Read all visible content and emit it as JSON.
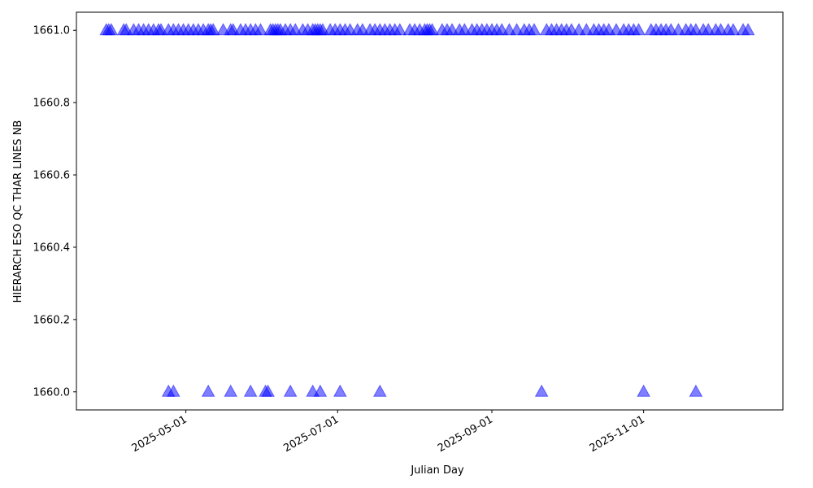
{
  "chart_data": {
    "type": "scatter",
    "title": "",
    "xlabel": "Julian Day",
    "ylabel": "HIERARCH ESO QC THAR LINES NB",
    "x_axis_kind": "date",
    "xlim": [
      "2025-03-18",
      "2025-12-27"
    ],
    "ylim": [
      1659.95,
      1661.05
    ],
    "x_ticks": [
      "2025-05-01",
      "2025-07-01",
      "2025-09-01",
      "2025-11-01"
    ],
    "y_ticks": [
      1660.0,
      1660.2,
      1660.4,
      1660.6,
      1660.8,
      1661.0
    ],
    "y_tick_labels": [
      "1660.0",
      "1660.2",
      "1660.4",
      "1660.6",
      "1660.8",
      "1661.0"
    ],
    "grid": false,
    "legend": "none",
    "marker": "triangle-up",
    "marker_color": "#0000ff",
    "marker_alpha": 0.5,
    "series": [
      {
        "points": [
          {
            "x": "2025-03-30",
            "y": 1661.0
          },
          {
            "x": "2025-03-31",
            "y": 1661.0
          },
          {
            "x": "2025-04-01",
            "y": 1661.0
          },
          {
            "x": "2025-04-06",
            "y": 1661.0
          },
          {
            "x": "2025-04-07",
            "y": 1661.0
          },
          {
            "x": "2025-04-10",
            "y": 1661.0
          },
          {
            "x": "2025-04-12",
            "y": 1661.0
          },
          {
            "x": "2025-04-14",
            "y": 1661.0
          },
          {
            "x": "2025-04-16",
            "y": 1661.0
          },
          {
            "x": "2025-04-18",
            "y": 1661.0
          },
          {
            "x": "2025-04-20",
            "y": 1661.0
          },
          {
            "x": "2025-04-21",
            "y": 1661.0
          },
          {
            "x": "2025-04-24",
            "y": 1661.0
          },
          {
            "x": "2025-04-26",
            "y": 1661.0
          },
          {
            "x": "2025-04-28",
            "y": 1661.0
          },
          {
            "x": "2025-04-30",
            "y": 1661.0
          },
          {
            "x": "2025-05-02",
            "y": 1661.0
          },
          {
            "x": "2025-05-04",
            "y": 1661.0
          },
          {
            "x": "2025-05-06",
            "y": 1661.0
          },
          {
            "x": "2025-05-08",
            "y": 1661.0
          },
          {
            "x": "2025-05-10",
            "y": 1661.0
          },
          {
            "x": "2025-05-11",
            "y": 1661.0
          },
          {
            "x": "2025-05-12",
            "y": 1661.0
          },
          {
            "x": "2025-05-16",
            "y": 1661.0
          },
          {
            "x": "2025-05-19",
            "y": 1661.0
          },
          {
            "x": "2025-05-20",
            "y": 1661.0
          },
          {
            "x": "2025-05-23",
            "y": 1661.0
          },
          {
            "x": "2025-05-25",
            "y": 1661.0
          },
          {
            "x": "2025-05-27",
            "y": 1661.0
          },
          {
            "x": "2025-05-29",
            "y": 1661.0
          },
          {
            "x": "2025-05-31",
            "y": 1661.0
          },
          {
            "x": "2025-06-04",
            "y": 1661.0
          },
          {
            "x": "2025-06-05",
            "y": 1661.0
          },
          {
            "x": "2025-06-06",
            "y": 1661.0
          },
          {
            "x": "2025-06-07",
            "y": 1661.0
          },
          {
            "x": "2025-06-08",
            "y": 1661.0
          },
          {
            "x": "2025-06-10",
            "y": 1661.0
          },
          {
            "x": "2025-06-12",
            "y": 1661.0
          },
          {
            "x": "2025-06-14",
            "y": 1661.0
          },
          {
            "x": "2025-06-17",
            "y": 1661.0
          },
          {
            "x": "2025-06-19",
            "y": 1661.0
          },
          {
            "x": "2025-06-21",
            "y": 1661.0
          },
          {
            "x": "2025-06-22",
            "y": 1661.0
          },
          {
            "x": "2025-06-23",
            "y": 1661.0
          },
          {
            "x": "2025-06-24",
            "y": 1661.0
          },
          {
            "x": "2025-06-25",
            "y": 1661.0
          },
          {
            "x": "2025-06-28",
            "y": 1661.0
          },
          {
            "x": "2025-06-30",
            "y": 1661.0
          },
          {
            "x": "2025-07-02",
            "y": 1661.0
          },
          {
            "x": "2025-07-04",
            "y": 1661.0
          },
          {
            "x": "2025-07-06",
            "y": 1661.0
          },
          {
            "x": "2025-07-09",
            "y": 1661.0
          },
          {
            "x": "2025-07-11",
            "y": 1661.0
          },
          {
            "x": "2025-07-14",
            "y": 1661.0
          },
          {
            "x": "2025-07-16",
            "y": 1661.0
          },
          {
            "x": "2025-07-18",
            "y": 1661.0
          },
          {
            "x": "2025-07-20",
            "y": 1661.0
          },
          {
            "x": "2025-07-22",
            "y": 1661.0
          },
          {
            "x": "2025-07-24",
            "y": 1661.0
          },
          {
            "x": "2025-07-26",
            "y": 1661.0
          },
          {
            "x": "2025-07-30",
            "y": 1661.0
          },
          {
            "x": "2025-08-01",
            "y": 1661.0
          },
          {
            "x": "2025-08-03",
            "y": 1661.0
          },
          {
            "x": "2025-08-05",
            "y": 1661.0
          },
          {
            "x": "2025-08-06",
            "y": 1661.0
          },
          {
            "x": "2025-08-07",
            "y": 1661.0
          },
          {
            "x": "2025-08-08",
            "y": 1661.0
          },
          {
            "x": "2025-08-12",
            "y": 1661.0
          },
          {
            "x": "2025-08-14",
            "y": 1661.0
          },
          {
            "x": "2025-08-16",
            "y": 1661.0
          },
          {
            "x": "2025-08-19",
            "y": 1661.0
          },
          {
            "x": "2025-08-21",
            "y": 1661.0
          },
          {
            "x": "2025-08-24",
            "y": 1661.0
          },
          {
            "x": "2025-08-26",
            "y": 1661.0
          },
          {
            "x": "2025-08-28",
            "y": 1661.0
          },
          {
            "x": "2025-08-30",
            "y": 1661.0
          },
          {
            "x": "2025-09-01",
            "y": 1661.0
          },
          {
            "x": "2025-09-03",
            "y": 1661.0
          },
          {
            "x": "2025-09-05",
            "y": 1661.0
          },
          {
            "x": "2025-09-08",
            "y": 1661.0
          },
          {
            "x": "2025-09-11",
            "y": 1661.0
          },
          {
            "x": "2025-09-14",
            "y": 1661.0
          },
          {
            "x": "2025-09-16",
            "y": 1661.0
          },
          {
            "x": "2025-09-18",
            "y": 1661.0
          },
          {
            "x": "2025-09-23",
            "y": 1661.0
          },
          {
            "x": "2025-09-25",
            "y": 1661.0
          },
          {
            "x": "2025-09-27",
            "y": 1661.0
          },
          {
            "x": "2025-09-29",
            "y": 1661.0
          },
          {
            "x": "2025-10-01",
            "y": 1661.0
          },
          {
            "x": "2025-10-03",
            "y": 1661.0
          },
          {
            "x": "2025-10-06",
            "y": 1661.0
          },
          {
            "x": "2025-10-09",
            "y": 1661.0
          },
          {
            "x": "2025-10-12",
            "y": 1661.0
          },
          {
            "x": "2025-10-14",
            "y": 1661.0
          },
          {
            "x": "2025-10-16",
            "y": 1661.0
          },
          {
            "x": "2025-10-18",
            "y": 1661.0
          },
          {
            "x": "2025-10-21",
            "y": 1661.0
          },
          {
            "x": "2025-10-24",
            "y": 1661.0
          },
          {
            "x": "2025-10-26",
            "y": 1661.0
          },
          {
            "x": "2025-10-28",
            "y": 1661.0
          },
          {
            "x": "2025-10-30",
            "y": 1661.0
          },
          {
            "x": "2025-11-04",
            "y": 1661.0
          },
          {
            "x": "2025-11-06",
            "y": 1661.0
          },
          {
            "x": "2025-11-08",
            "y": 1661.0
          },
          {
            "x": "2025-11-10",
            "y": 1661.0
          },
          {
            "x": "2025-11-12",
            "y": 1661.0
          },
          {
            "x": "2025-11-15",
            "y": 1661.0
          },
          {
            "x": "2025-11-18",
            "y": 1661.0
          },
          {
            "x": "2025-11-20",
            "y": 1661.0
          },
          {
            "x": "2025-11-22",
            "y": 1661.0
          },
          {
            "x": "2025-11-25",
            "y": 1661.0
          },
          {
            "x": "2025-11-27",
            "y": 1661.0
          },
          {
            "x": "2025-11-30",
            "y": 1661.0
          },
          {
            "x": "2025-12-02",
            "y": 1661.0
          },
          {
            "x": "2025-12-05",
            "y": 1661.0
          },
          {
            "x": "2025-12-07",
            "y": 1661.0
          },
          {
            "x": "2025-12-11",
            "y": 1661.0
          },
          {
            "x": "2025-12-13",
            "y": 1661.0
          },
          {
            "x": "2025-04-24",
            "y": 1660.0
          },
          {
            "x": "2025-04-26",
            "y": 1660.0
          },
          {
            "x": "2025-05-10",
            "y": 1660.0
          },
          {
            "x": "2025-05-19",
            "y": 1660.0
          },
          {
            "x": "2025-05-27",
            "y": 1660.0
          },
          {
            "x": "2025-06-02",
            "y": 1660.0
          },
          {
            "x": "2025-06-03",
            "y": 1660.0
          },
          {
            "x": "2025-06-12",
            "y": 1660.0
          },
          {
            "x": "2025-06-21",
            "y": 1660.0
          },
          {
            "x": "2025-06-24",
            "y": 1660.0
          },
          {
            "x": "2025-07-02",
            "y": 1660.0
          },
          {
            "x": "2025-07-18",
            "y": 1660.0
          },
          {
            "x": "2025-09-21",
            "y": 1660.0
          },
          {
            "x": "2025-11-01",
            "y": 1660.0
          },
          {
            "x": "2025-11-22",
            "y": 1660.0
          }
        ]
      }
    ]
  }
}
